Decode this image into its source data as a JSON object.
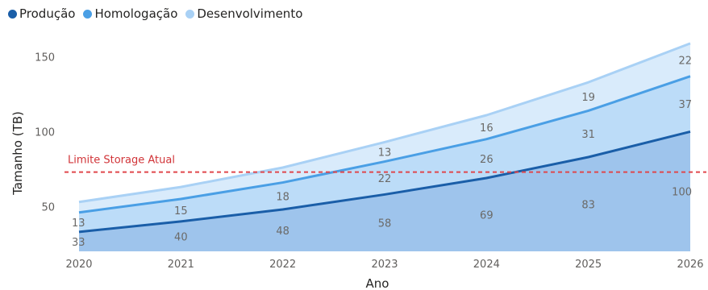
{
  "chart_data": {
    "type": "area",
    "stacked": true,
    "x": [
      "2020",
      "2021",
      "2022",
      "2023",
      "2024",
      "2025",
      "2026"
    ],
    "series": [
      {
        "name": "Produção",
        "color": "#1a5ea8",
        "values": [
          33,
          40,
          48,
          58,
          69,
          83,
          100
        ]
      },
      {
        "name": "Homologação",
        "color": "#4a9fe5",
        "values": [
          13,
          15,
          18,
          22,
          26,
          31,
          37
        ]
      },
      {
        "name": "Desenvolvimento",
        "color": "#a9d1f5",
        "values": [
          7,
          8,
          10,
          13,
          16,
          19,
          22
        ]
      }
    ],
    "data_labels": {
      "Produção": [
        "33",
        "40",
        "48",
        "58",
        "69",
        "83",
        "100"
      ],
      "Homologação": [
        "13",
        "15",
        "18",
        "22",
        "26",
        "31",
        "37"
      ],
      "Desenvolvimento": [
        "",
        "",
        "",
        "13",
        "16",
        "19",
        "22"
      ]
    },
    "xlabel": "Ano",
    "ylabel": "Tamanho (TB)",
    "ylim": [
      20,
      160
    ],
    "yticks": [
      50,
      100,
      150
    ],
    "reference_line": {
      "label": "Limite Storage Atual",
      "value": 73,
      "color": "#e0474c"
    },
    "legend_position": "top-left",
    "grid": false
  }
}
